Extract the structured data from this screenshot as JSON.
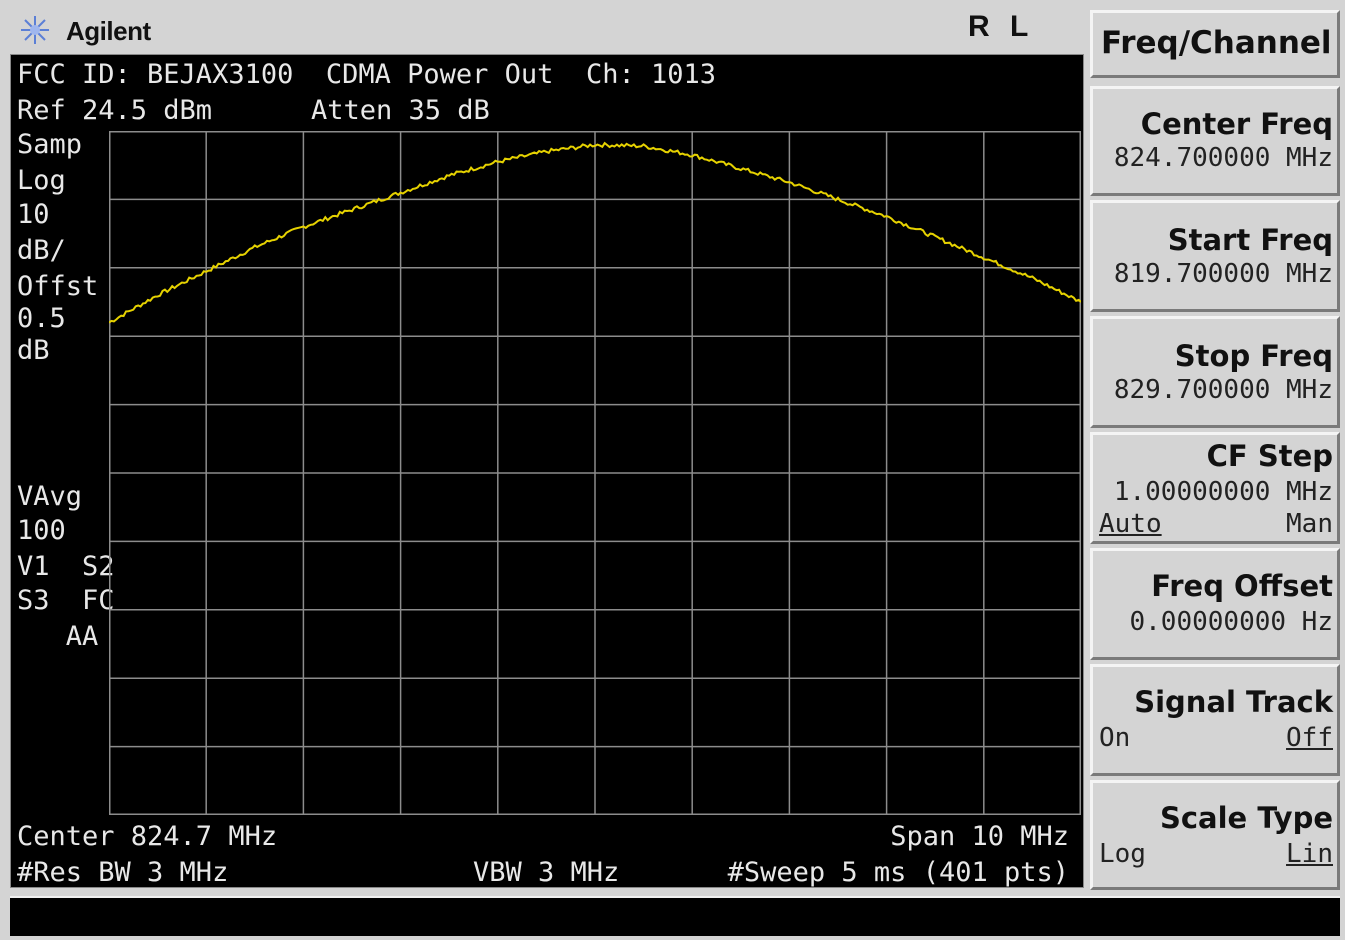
{
  "brand": "Agilent",
  "indicator": "R L",
  "screen": {
    "line1": "FCC ID: BEJAX3100  CDMA Power Out  Ch: 1013",
    "ref": "Ref 24.5 dBm",
    "atten": "Atten 35 dB",
    "left_labels": [
      "Samp",
      "Log",
      "10",
      "dB/",
      "Offst",
      "0.5",
      "dB"
    ],
    "left_labels2": [
      "VAvg",
      "100",
      "V1  S2",
      "S3  FC",
      "   AA"
    ],
    "center": "Center 824.7 MHz",
    "span": "Span 10 MHz",
    "res_bw": "#Res BW 3 MHz",
    "vbw": "VBW 3 MHz",
    "sweep": "#Sweep 5 ms (401 pts)"
  },
  "menu_title": "Freq/Channel",
  "softkeys": {
    "center_freq": {
      "title": "Center Freq",
      "value": "824.700000 MHz"
    },
    "start_freq": {
      "title": "Start Freq",
      "value": "819.700000 MHz"
    },
    "stop_freq": {
      "title": "Stop Freq",
      "value": "829.700000 MHz"
    },
    "cf_step": {
      "title": "CF Step",
      "value": "1.00000000 MHz",
      "left": "Auto",
      "right": "Man"
    },
    "freq_offset": {
      "title": "Freq Offset",
      "value": "0.00000000  Hz"
    },
    "signal_track": {
      "title": "Signal Track",
      "left": "On",
      "right": "Off"
    },
    "scale_type": {
      "title": "Scale Type",
      "left": "Log",
      "right": "Lin"
    }
  },
  "colors": {
    "trace": "#e6d200",
    "grid": "#8c8c8c",
    "screen_bg": "#000000",
    "panel": "#d4d4d4"
  },
  "chart_data": {
    "type": "line",
    "x_unit": "MHz",
    "y_unit": "dBm",
    "xlim": [
      819.7,
      829.7
    ],
    "ylim": [
      -75.5,
      24.5
    ],
    "grid": true,
    "series": [
      {
        "x": [
          819.7,
          820.2,
          820.7,
          821.2,
          821.7,
          822.2,
          822.7,
          823.2,
          823.7,
          824.2,
          824.7,
          825.2,
          825.7,
          826.2,
          826.7,
          827.2,
          827.7,
          828.2,
          828.7,
          829.2,
          829.7
        ],
        "values": [
          -3.5,
          0.5,
          4.0,
          7.5,
          10.5,
          13.0,
          15.5,
          18.0,
          20.0,
          21.5,
          22.5,
          22.3,
          21.0,
          19.0,
          17.0,
          14.5,
          12.0,
          9.0,
          6.0,
          3.0,
          -0.5
        ]
      }
    ]
  }
}
